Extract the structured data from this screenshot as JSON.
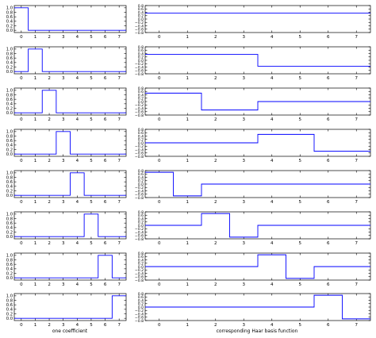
{
  "colors": {
    "line": "#0000ff",
    "axis": "#000000",
    "background": "#ffffff"
  },
  "labels": {
    "left": "one coefficient",
    "right": "corresponding Haar basis function"
  },
  "chart_data": [
    {
      "type": "line",
      "panel": "left-1",
      "step": "post",
      "x": [
        -0.5,
        0.5,
        7.5
      ],
      "y": [
        1,
        0,
        0
      ],
      "xlim": [
        -0.5,
        7.5
      ],
      "ylim": [
        -0.1,
        1.1
      ],
      "xticks": [
        "0",
        "1",
        "2",
        "3",
        "4",
        "5",
        "6",
        "7"
      ],
      "yticks": [
        "0.0",
        "0.2",
        "0.4",
        "0.6",
        "0.8",
        "1.0"
      ]
    },
    {
      "type": "line",
      "panel": "left-2",
      "step": "post",
      "x": [
        -0.5,
        0.5,
        1.5,
        7.5
      ],
      "y": [
        0,
        1,
        0,
        0
      ],
      "xlim": [
        -0.5,
        7.5
      ],
      "ylim": [
        -0.1,
        1.1
      ],
      "xticks": [
        "0",
        "1",
        "2",
        "3",
        "4",
        "5",
        "6",
        "7"
      ],
      "yticks": [
        "0.0",
        "0.2",
        "0.4",
        "0.6",
        "0.8",
        "1.0"
      ]
    },
    {
      "type": "line",
      "panel": "left-3",
      "step": "post",
      "x": [
        -0.5,
        1.5,
        2.5,
        7.5
      ],
      "y": [
        0,
        1,
        0,
        0
      ],
      "xlim": [
        -0.5,
        7.5
      ],
      "ylim": [
        -0.1,
        1.1
      ],
      "xticks": [
        "0",
        "1",
        "2",
        "3",
        "4",
        "5",
        "6",
        "7"
      ],
      "yticks": [
        "0.0",
        "0.2",
        "0.4",
        "0.6",
        "0.8",
        "1.0"
      ]
    },
    {
      "type": "line",
      "panel": "left-4",
      "step": "post",
      "x": [
        -0.5,
        2.5,
        3.5,
        7.5
      ],
      "y": [
        0,
        1,
        0,
        0
      ],
      "xlim": [
        -0.5,
        7.5
      ],
      "ylim": [
        -0.1,
        1.1
      ],
      "xticks": [
        "0",
        "1",
        "2",
        "3",
        "4",
        "5",
        "6",
        "7"
      ],
      "yticks": [
        "0.0",
        "0.2",
        "0.4",
        "0.6",
        "0.8",
        "1.0"
      ]
    },
    {
      "type": "line",
      "panel": "left-5",
      "step": "post",
      "x": [
        -0.5,
        3.5,
        4.5,
        7.5
      ],
      "y": [
        0,
        1,
        0,
        0
      ],
      "xlim": [
        -0.5,
        7.5
      ],
      "ylim": [
        -0.1,
        1.1
      ],
      "xticks": [
        "0",
        "1",
        "2",
        "3",
        "4",
        "5",
        "6",
        "7"
      ],
      "yticks": [
        "0.0",
        "0.2",
        "0.4",
        "0.6",
        "0.8",
        "1.0"
      ]
    },
    {
      "type": "line",
      "panel": "left-6",
      "step": "post",
      "x": [
        -0.5,
        4.5,
        5.5,
        7.5
      ],
      "y": [
        0,
        1,
        0,
        0
      ],
      "xlim": [
        -0.5,
        7.5
      ],
      "ylim": [
        -0.1,
        1.1
      ],
      "xticks": [
        "0",
        "1",
        "2",
        "3",
        "4",
        "5",
        "6",
        "7"
      ],
      "yticks": [
        "0.0",
        "0.2",
        "0.4",
        "0.6",
        "0.8",
        "1.0"
      ]
    },
    {
      "type": "line",
      "panel": "left-7",
      "step": "post",
      "x": [
        -0.5,
        5.5,
        6.5,
        7.5
      ],
      "y": [
        0,
        1,
        0,
        0
      ],
      "xlim": [
        -0.5,
        7.5
      ],
      "ylim": [
        -0.1,
        1.1
      ],
      "xticks": [
        "0",
        "1",
        "2",
        "3",
        "4",
        "5",
        "6",
        "7"
      ],
      "yticks": [
        "0.0",
        "0.2",
        "0.4",
        "0.6",
        "0.8",
        "1.0"
      ]
    },
    {
      "type": "line",
      "panel": "left-8",
      "step": "post",
      "x": [
        -0.5,
        6.5,
        7.5
      ],
      "y": [
        0,
        1,
        1
      ],
      "xlim": [
        -0.5,
        7.5
      ],
      "ylim": [
        -0.1,
        1.1
      ],
      "xticks": [
        "0",
        "1",
        "2",
        "3",
        "4",
        "5",
        "6",
        "7"
      ],
      "yticks": [
        "0.0",
        "0.2",
        "0.4",
        "0.6",
        "0.8",
        "1.0"
      ]
    },
    {
      "type": "line",
      "panel": "right-1",
      "step": "post",
      "x": [
        -0.5,
        7.5
      ],
      "y": [
        0.35,
        0.35
      ],
      "xlim": [
        -0.5,
        7.5
      ],
      "ylim": [
        -0.8,
        0.8
      ],
      "xticks": [
        "0",
        "1",
        "2",
        "3",
        "4",
        "5",
        "6",
        "7"
      ],
      "yticks": [
        "−0.8",
        "−0.6",
        "−0.4",
        "−0.2",
        "0.0",
        "0.2",
        "0.4",
        "0.6",
        "0.8"
      ]
    },
    {
      "type": "line",
      "panel": "right-2",
      "step": "post",
      "x": [
        -0.5,
        3.5,
        7.5
      ],
      "y": [
        0.35,
        -0.35,
        -0.35
      ],
      "xlim": [
        -0.5,
        7.5
      ],
      "ylim": [
        -0.8,
        0.8
      ],
      "xticks": [
        "0",
        "1",
        "2",
        "3",
        "4",
        "5",
        "6",
        "7"
      ],
      "yticks": [
        "−0.8",
        "−0.6",
        "−0.4",
        "−0.2",
        "0.0",
        "0.2",
        "0.4",
        "0.6",
        "0.8"
      ]
    },
    {
      "type": "line",
      "panel": "right-3",
      "step": "post",
      "x": [
        -0.5,
        1.5,
        3.5,
        7.5
      ],
      "y": [
        0.5,
        -0.5,
        0,
        0
      ],
      "xlim": [
        -0.5,
        7.5
      ],
      "ylim": [
        -0.8,
        0.8
      ],
      "xticks": [
        "0",
        "1",
        "2",
        "3",
        "4",
        "5",
        "6",
        "7"
      ],
      "yticks": [
        "−0.8",
        "−0.6",
        "−0.4",
        "−0.2",
        "0.0",
        "0.2",
        "0.4",
        "0.6",
        "0.8"
      ]
    },
    {
      "type": "line",
      "panel": "right-4",
      "step": "post",
      "x": [
        -0.5,
        3.5,
        5.5,
        7.5
      ],
      "y": [
        0,
        0.5,
        -0.5,
        -0.5
      ],
      "xlim": [
        -0.5,
        7.5
      ],
      "ylim": [
        -0.8,
        0.8
      ],
      "xticks": [
        "0",
        "1",
        "2",
        "3",
        "4",
        "5",
        "6",
        "7"
      ],
      "yticks": [
        "−0.8",
        "−0.6",
        "−0.4",
        "−0.2",
        "0.0",
        "0.2",
        "0.4",
        "0.6",
        "0.8"
      ]
    },
    {
      "type": "line",
      "panel": "right-5",
      "step": "post",
      "x": [
        -0.5,
        0.5,
        1.5,
        7.5
      ],
      "y": [
        0.7,
        -0.7,
        0,
        0
      ],
      "xlim": [
        -0.5,
        7.5
      ],
      "ylim": [
        -0.8,
        0.8
      ],
      "xticks": [
        "0",
        "1",
        "2",
        "3",
        "4",
        "5",
        "6",
        "7"
      ],
      "yticks": [
        "−0.8",
        "−0.6",
        "−0.4",
        "−0.2",
        "0.0",
        "0.2",
        "0.4",
        "0.6",
        "0.8"
      ]
    },
    {
      "type": "line",
      "panel": "right-6",
      "step": "post",
      "x": [
        -0.5,
        1.5,
        2.5,
        3.5,
        7.5
      ],
      "y": [
        0,
        0.7,
        -0.7,
        0,
        0
      ],
      "xlim": [
        -0.5,
        7.5
      ],
      "ylim": [
        -0.8,
        0.8
      ],
      "xticks": [
        "0",
        "1",
        "2",
        "3",
        "4",
        "5",
        "6",
        "7"
      ],
      "yticks": [
        "−0.8",
        "−0.6",
        "−0.4",
        "−0.2",
        "0.0",
        "0.2",
        "0.4",
        "0.6",
        "0.8"
      ]
    },
    {
      "type": "line",
      "panel": "right-7",
      "step": "post",
      "x": [
        -0.5,
        3.5,
        4.5,
        5.5,
        7.5
      ],
      "y": [
        0,
        0.7,
        -0.7,
        0,
        0
      ],
      "xlim": [
        -0.5,
        7.5
      ],
      "ylim": [
        -0.8,
        0.8
      ],
      "xticks": [
        "0",
        "1",
        "2",
        "3",
        "4",
        "5",
        "6",
        "7"
      ],
      "yticks": [
        "−0.8",
        "−0.6",
        "−0.4",
        "−0.2",
        "0.0",
        "0.2",
        "0.4",
        "0.6",
        "0.8"
      ]
    },
    {
      "type": "line",
      "panel": "right-8",
      "step": "post",
      "x": [
        -0.5,
        5.5,
        6.5,
        7.5
      ],
      "y": [
        0,
        0.7,
        -0.7,
        -0.7
      ],
      "xlim": [
        -0.5,
        7.5
      ],
      "ylim": [
        -0.8,
        0.8
      ],
      "xticks": [
        "0",
        "1",
        "2",
        "3",
        "4",
        "5",
        "6",
        "7"
      ],
      "yticks": [
        "−0.8",
        "−0.6",
        "−0.4",
        "−0.2",
        "0.0",
        "0.2",
        "0.4",
        "0.6",
        "0.8"
      ]
    }
  ]
}
